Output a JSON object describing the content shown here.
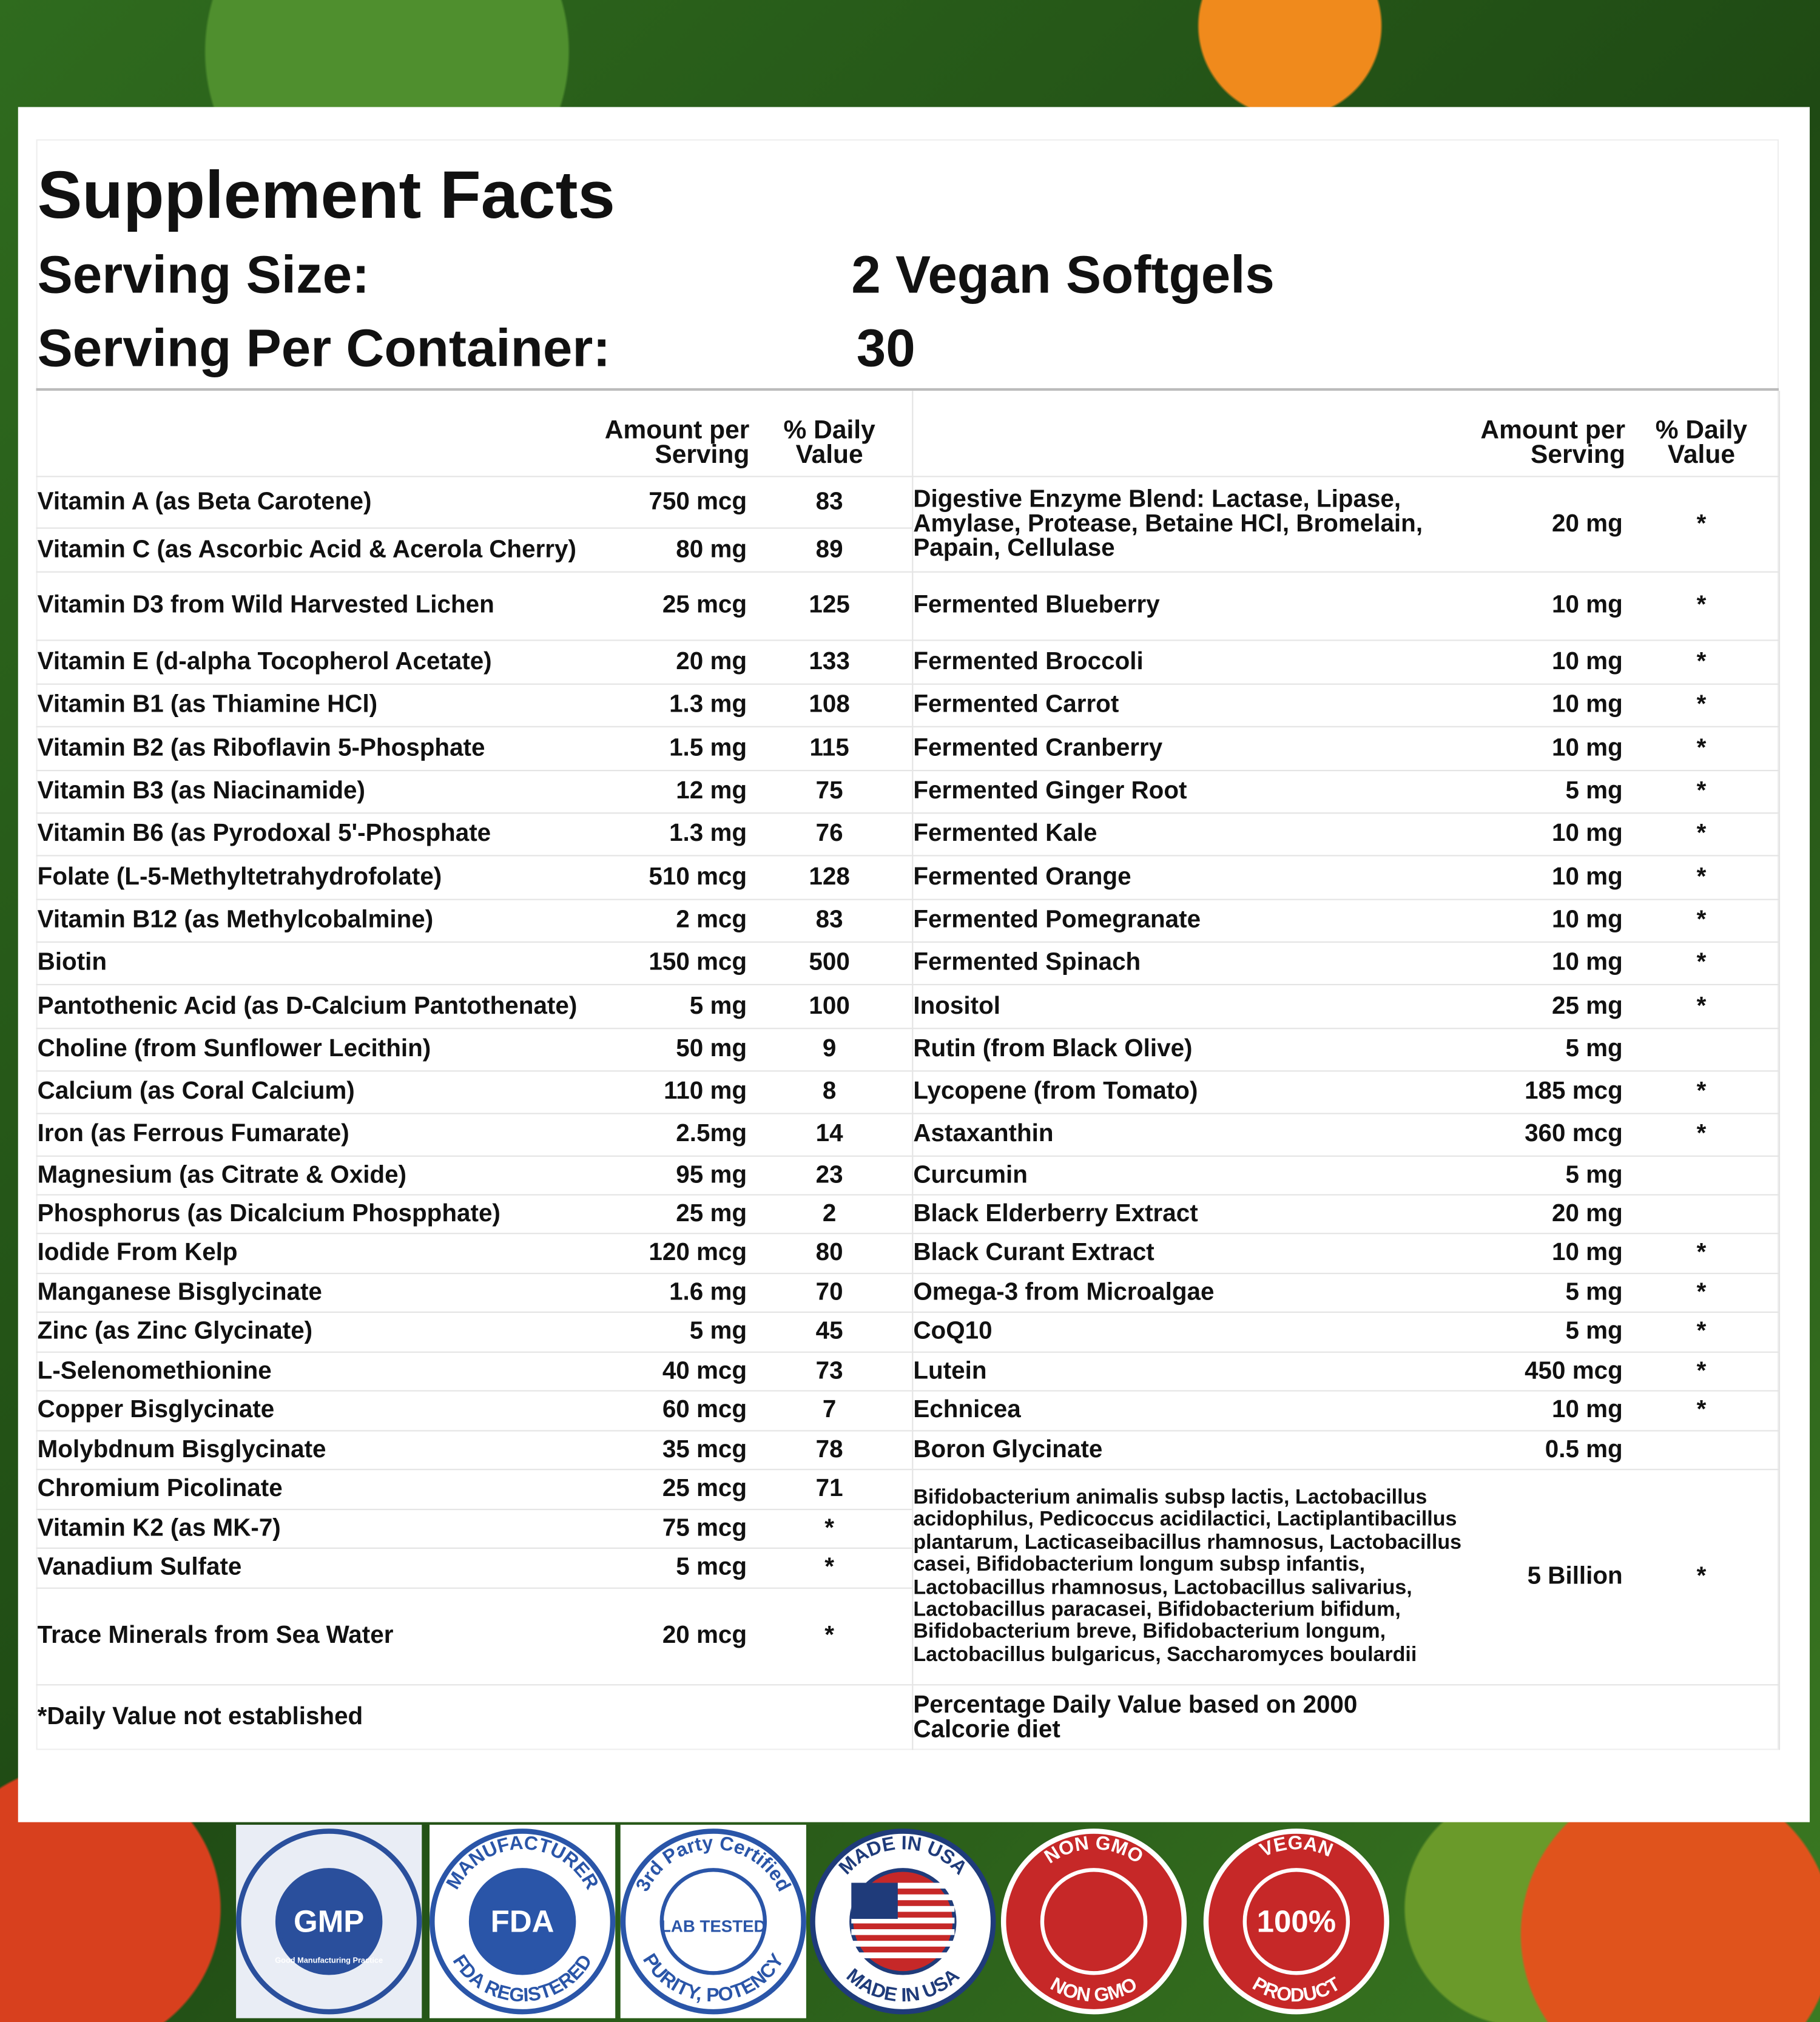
{
  "header": {
    "title": "Supplement Facts",
    "serving_size_label": "Serving Size:",
    "serving_size": "2 Vegan Softgels",
    "servings_label": "Serving Per Container:",
    "servings": "30"
  },
  "table": {
    "left": {
      "columns": [
        "Amount per Serving",
        "% Daily Value"
      ],
      "rows": [
        [
          "Vitamin A (as Beta Carotene)",
          "750 mcg",
          "83"
        ],
        [
          "Vitamin C (as Ascorbic Acid & Acerola Cherry)",
          "80 mg",
          "89"
        ],
        [
          "Vitamin D3 from Wild Harvested Lichen",
          "25 mcg",
          "125"
        ],
        [
          "Vitamin E (d-alpha Tocopherol Acetate)",
          "20 mg",
          "133"
        ],
        [
          "Vitamin B1 (as Thiamine HCl)",
          "1.3 mg",
          "108"
        ],
        [
          "Vitamin B2 (as Riboflavin 5-Phosphate",
          "1.5 mg",
          "115"
        ],
        [
          "Vitamin B3 (as Niacinamide)",
          "12 mg",
          "75"
        ],
        [
          "Vitamin B6 (as Pyrodoxal 5'-Phosphate",
          "1.3 mg",
          "76"
        ],
        [
          "Folate (L-5-Methyltetrahydrofolate)",
          "510 mcg",
          "128"
        ],
        [
          "Vitamin B12 (as Methylcobalmine)",
          "2 mcg",
          "83"
        ],
        [
          "Biotin",
          "150 mcg",
          "500"
        ],
        [
          "Pantothenic Acid (as D-Calcium Pantothenate)",
          "5 mg",
          "100"
        ],
        [
          "Choline (from Sunflower Lecithin)",
          "50 mg",
          "9"
        ],
        [
          "Calcium (as Coral Calcium)",
          "110 mg",
          "8"
        ],
        [
          "Iron (as Ferrous Fumarate)",
          "2.5mg",
          "14"
        ],
        [
          "Magnesium (as Citrate & Oxide)",
          "95 mg",
          "23"
        ],
        [
          "Phosphorus (as Dicalcium Phospphate)",
          "25 mg",
          "2"
        ],
        [
          "Iodide From Kelp",
          "120 mcg",
          "80"
        ],
        [
          "Manganese Bisglycinate",
          "1.6 mg",
          "70"
        ],
        [
          "Zinc (as Zinc Glycinate)",
          "5 mg",
          "45"
        ],
        [
          "L-Selenomethionine",
          "40 mcg",
          "73"
        ],
        [
          "Copper Bisglycinate",
          "60 mcg",
          "7"
        ],
        [
          "Molybdnum Bisglycinate",
          "35 mcg",
          "78"
        ],
        [
          "Chromium Picolinate",
          "25 mcg",
          "71"
        ],
        [
          "Vitamin K2 (as MK-7)",
          "75 mcg",
          "*"
        ],
        [
          "Vanadium Sulfate",
          "5 mcg",
          "*"
        ],
        [
          "Trace Minerals from Sea Water",
          "20 mcg",
          "*"
        ]
      ],
      "footnote": "*Daily Value not established"
    },
    "right": {
      "columns": [
        "Amount per Serving",
        "% Daily Value"
      ],
      "rows": [
        [
          "Digestive Enzyme Blend: Lactase, Lipase, Amylase, Protease, Betaine HCl, Bromelain, Papain, Cellulase",
          "20 mg",
          "*"
        ],
        [
          "Fermented Blueberry",
          "10 mg",
          "*"
        ],
        [
          "Fermented Broccoli",
          "10 mg",
          "*"
        ],
        [
          "Fermented Carrot",
          "10 mg",
          "*"
        ],
        [
          "Fermented Cranberry",
          "10 mg",
          "*"
        ],
        [
          "Fermented Ginger Root",
          "5 mg",
          "*"
        ],
        [
          "Fermented Kale",
          "10 mg",
          "*"
        ],
        [
          "Fermented Orange",
          "10 mg",
          "*"
        ],
        [
          "Fermented Pomegranate",
          "10 mg",
          "*"
        ],
        [
          "Fermented Spinach",
          "10 mg",
          "*"
        ],
        [
          "Inositol",
          "25 mg",
          "*"
        ],
        [
          "Rutin (from Black Olive)",
          "5 mg",
          null
        ],
        [
          "Lycopene (from Tomato)",
          "185 mcg",
          "*"
        ],
        [
          "Astaxanthin",
          "360 mcg",
          "*"
        ],
        [
          "Curcumin",
          "5 mg",
          null
        ],
        [
          "Black Elderberry Extract",
          "20 mg",
          null
        ],
        [
          "Black Curant Extract",
          "10 mg",
          "*"
        ],
        [
          "Omega-3 from Microalgae",
          "5 mg",
          "*"
        ],
        [
          "CoQ10",
          "5 mg",
          "*"
        ],
        [
          "Lutein",
          "450 mcg",
          "*"
        ],
        [
          "Echnicea",
          "10 mg",
          "*"
        ],
        [
          "Boron Glycinate",
          "0.5 mg",
          null
        ],
        [
          "Bifidobacterium animalis subsp lactis, Lactobacillus acidophilus, Pedicoccus acidilactici, Lactiplantibacillus plantarum, Lacticaseibacillus rhamnosus, Lactobacillus casei, Bifidobacterium longum subsp infantis, Lactobacillus rhamnosus, Lactobacillus salivarius, Lactobacillus paracasei, Bifidobacterium bifidum, Bifidobacterium breve, Bifidobacterium longum, Lactobacillus bulgaricus, Saccharomyces boulardii",
          "5 Billion",
          "*"
        ]
      ],
      "footnote": "Percentage Daily Value based on 2000 Calcorie diet"
    }
  },
  "badges": [
    {
      "center": "GMP",
      "bottom": "Good Manufacturing Practice"
    },
    {
      "top": "MANUFACTURER",
      "center": "FDA",
      "bottom": "FDA REGISTERED"
    },
    {
      "top": "3rd Party Certified",
      "center": "LAB TESTED",
      "bottom": "PURITY, POTENCY"
    },
    {
      "top": "MADE IN USA",
      "bottom": "MADE IN USA"
    },
    {
      "top": "NON GMO",
      "bottom": "NON GMO"
    },
    {
      "top": "VEGAN",
      "center": "100%",
      "bottom": "PRODUCT"
    }
  ]
}
